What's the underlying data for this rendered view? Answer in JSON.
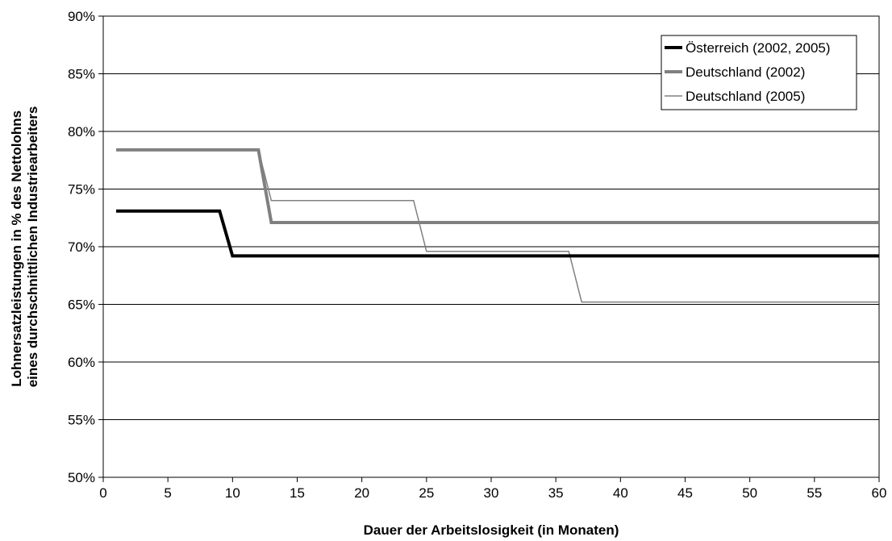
{
  "chart_data": {
    "type": "line",
    "title": "",
    "xlabel": "Dauer der Arbeitslosigkeit (in Monaten)",
    "ylabel_lines": [
      "Lohnersatzleistungen in % des Nettolohns",
      "eines durchschnittlichen Industriearbeiters"
    ],
    "xlim": [
      0,
      60
    ],
    "ylim": [
      50,
      90
    ],
    "x_ticks": [
      0,
      5,
      10,
      15,
      20,
      25,
      30,
      35,
      40,
      45,
      50,
      55,
      60
    ],
    "y_ticks": [
      50,
      55,
      60,
      65,
      70,
      75,
      80,
      85,
      90
    ],
    "y_tick_labels": [
      "50%",
      "55%",
      "60%",
      "65%",
      "70%",
      "75%",
      "80%",
      "85%",
      "90%"
    ],
    "grid": "horizontal",
    "legend_position": "top-right",
    "series": [
      {
        "name": "Österreich (2002, 2005)",
        "color": "#000000",
        "line_style": "thick",
        "points": [
          [
            1,
            73.1
          ],
          [
            9,
            73.1
          ],
          [
            10,
            69.2
          ],
          [
            60,
            69.2
          ]
        ]
      },
      {
        "name": "Deutschland (2002)",
        "color": "#808080",
        "line_style": "thick",
        "points": [
          [
            1,
            78.4
          ],
          [
            12,
            78.4
          ],
          [
            13,
            72.1
          ],
          [
            60,
            72.1
          ]
        ]
      },
      {
        "name": "Deutschland (2005)",
        "color": "#808080",
        "line_style": "thin",
        "points": [
          [
            1,
            78.4
          ],
          [
            12,
            78.4
          ],
          [
            13,
            74.0
          ],
          [
            24,
            74.0
          ],
          [
            25,
            69.6
          ],
          [
            36,
            69.6
          ],
          [
            37,
            65.2
          ],
          [
            60,
            65.2
          ]
        ]
      }
    ]
  }
}
